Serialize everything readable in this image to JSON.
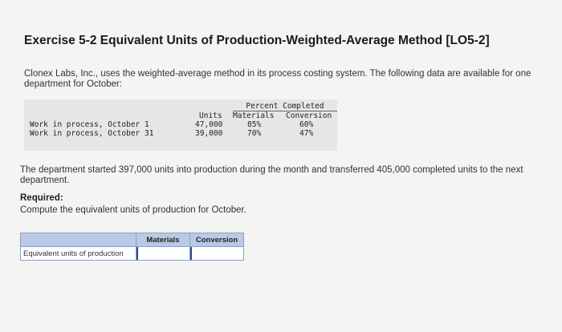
{
  "exercise": {
    "title": "Exercise 5-2 Equivalent Units of Production-Weighted-Average Method [LO5-2]",
    "intro": "Clonex Labs, Inc., uses the weighted-average method in its process costing system. The following data are available for one department for October:"
  },
  "wip_table": {
    "group_header": "Percent Completed",
    "columns": [
      "Units",
      "Materials",
      "Conversion"
    ],
    "rows": [
      {
        "label": "Work in process, October 1",
        "units": "47,000",
        "materials": "85%",
        "conversion": "60%"
      },
      {
        "label": "Work in process, October 31",
        "units": "39,000",
        "materials": "70%",
        "conversion": "47%"
      }
    ]
  },
  "narrative": "The department started 397,000 units into production during the month and transferred 405,000 completed units to the next department.",
  "required": {
    "label": "Required:",
    "text": "Compute the equivalent units of production for October."
  },
  "answer_table": {
    "columns": [
      "",
      "Materials",
      "Conversion"
    ],
    "row_label": "Equivalent units of production",
    "materials_value": "",
    "conversion_value": ""
  },
  "colors": {
    "header_fill": "#b9c9e6",
    "border": "#8d9fc4",
    "data_box": "#e6e6e6"
  }
}
